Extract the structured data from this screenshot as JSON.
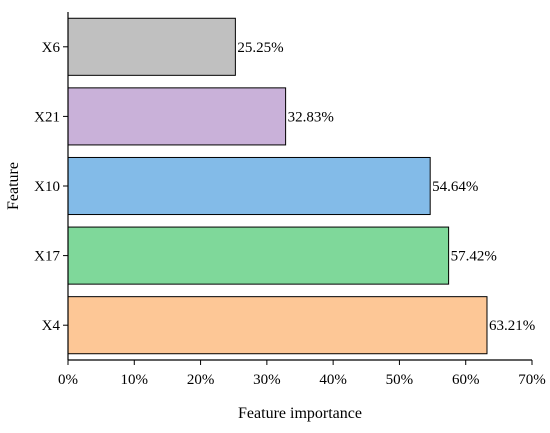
{
  "chart_data": {
    "type": "bar",
    "orientation": "horizontal",
    "categories": [
      "X6",
      "X21",
      "X10",
      "X17",
      "X4"
    ],
    "values": [
      25.25,
      32.83,
      54.64,
      57.42,
      63.21
    ],
    "data_labels": [
      "25.25%",
      "32.83%",
      "54.64%",
      "57.42%",
      "63.21%"
    ],
    "colors": [
      "#c0c0c0",
      "#c9b1d9",
      "#83bbe8",
      "#7fd89a",
      "#fdc796"
    ],
    "xlabel": "Feature importance",
    "ylabel": "Feature",
    "xlim": [
      0,
      70
    ],
    "x_ticks": [
      0,
      10,
      20,
      30,
      40,
      50,
      60,
      70
    ],
    "x_tick_labels": [
      "0%",
      "10%",
      "20%",
      "30%",
      "40%",
      "50%",
      "60%",
      "70%"
    ],
    "grid": false,
    "legend": "none"
  }
}
